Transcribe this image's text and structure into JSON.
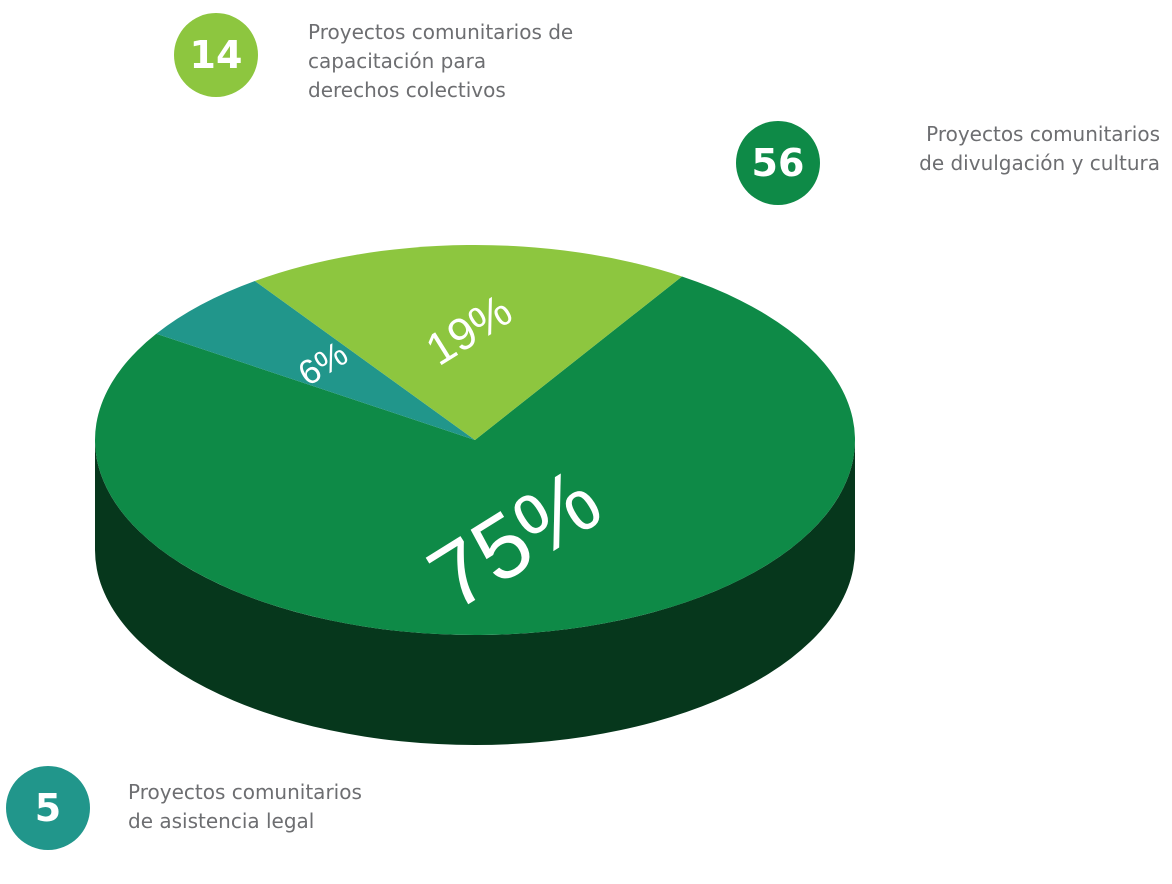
{
  "chart_data": {
    "type": "pie3d",
    "categories": [
      "Proyectos comunitarios\nde divulgación y cultura",
      "Proyectos comunitarios\nde asistencia legal",
      "Proyectos comunitarios de\ncapacitación para\nderechos colectivos"
    ],
    "values": [
      75,
      6,
      19
    ],
    "value_labels": [
      "75%",
      "6%",
      "19%"
    ],
    "counts": [
      56,
      5,
      14
    ],
    "colors": [
      "#0e8a47",
      "#21968b",
      "#8dc63f"
    ]
  }
}
